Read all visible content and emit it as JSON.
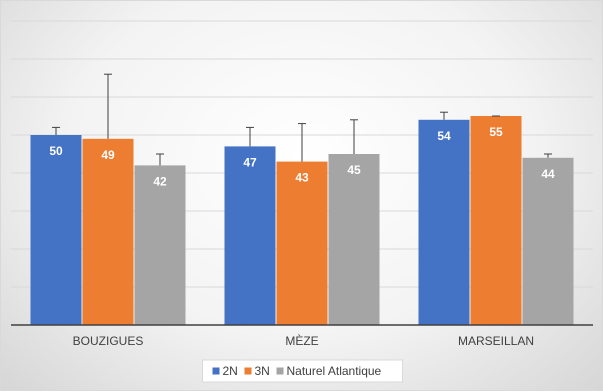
{
  "chart_data": {
    "type": "bar",
    "categories": [
      "BOUZIGUES",
      "MÈZE",
      "MARSEILLAN"
    ],
    "series": [
      {
        "name": "2N",
        "color": "#4472c4",
        "values": [
          50,
          47,
          54
        ],
        "error_upper": [
          52,
          52,
          56
        ]
      },
      {
        "name": "3N",
        "color": "#ed7d31",
        "values": [
          49,
          43,
          55
        ],
        "error_upper": [
          66,
          53,
          55
        ]
      },
      {
        "name": "Naturel Atlantique",
        "color": "#a5a5a5",
        "values": [
          42,
          45,
          44
        ],
        "error_upper": [
          45,
          54,
          45
        ]
      }
    ],
    "ylim": [
      0,
      80
    ],
    "grid": true,
    "legend_position": "bottom"
  }
}
